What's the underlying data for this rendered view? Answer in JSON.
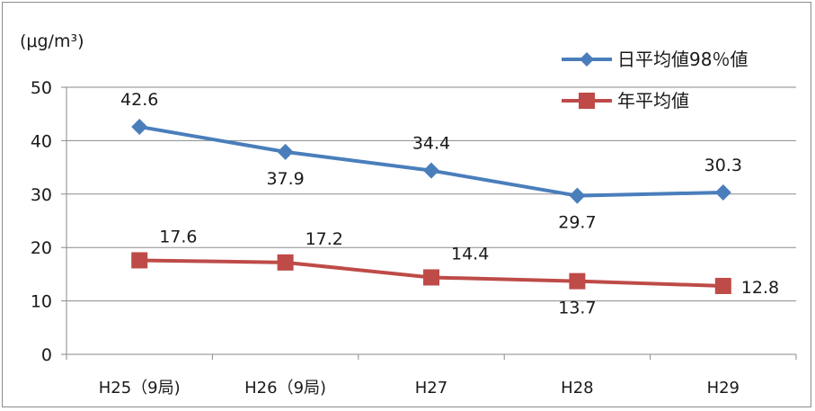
{
  "chart_data": {
    "type": "line",
    "unit_label": "(μg/m³)",
    "categories": [
      "H25（9局)",
      "H26（9局)",
      "H27",
      "H28",
      "H29"
    ],
    "ylim": [
      0,
      50
    ],
    "yticks": [
      0,
      10,
      20,
      30,
      40,
      50
    ],
    "grid": true,
    "legend_position": "top-right",
    "series": [
      {
        "name": "日平均値98％値",
        "values": [
          42.6,
          37.9,
          34.4,
          29.7,
          30.3
        ],
        "labels": [
          "42.6",
          "37.9",
          "34.4",
          "29.7",
          "30.3"
        ],
        "label_positions": [
          "above",
          "below",
          "above",
          "below",
          "above"
        ],
        "color": "#4a7ebb",
        "marker": "diamond"
      },
      {
        "name": "年平均値",
        "values": [
          17.6,
          17.2,
          14.4,
          13.7,
          12.8
        ],
        "labels": [
          "17.6",
          "17.2",
          "14.4",
          "13.7",
          "12.8"
        ],
        "label_positions": [
          "above-right",
          "above-right",
          "above-right",
          "below",
          "right"
        ],
        "color": "#be4b48",
        "marker": "square"
      }
    ]
  }
}
